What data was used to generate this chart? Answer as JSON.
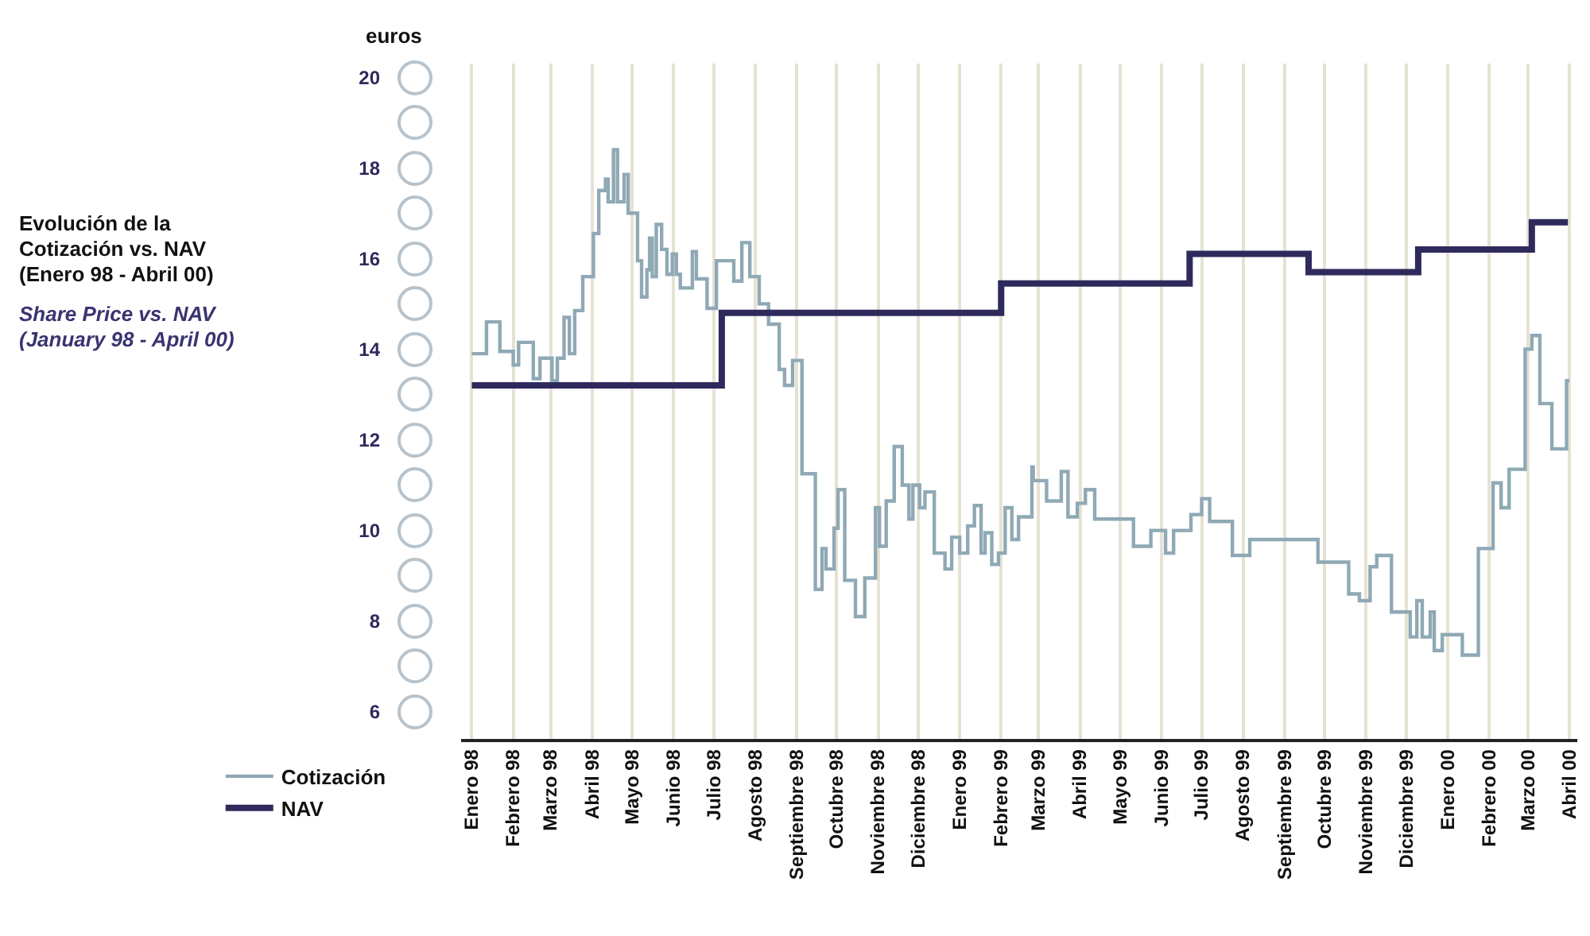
{
  "chart_data": {
    "type": "step",
    "title": "Evolución de la Cotización vs. NAV (Enero 98 - Abril 00)",
    "subtitle": "Share Price vs. NAV (January 98 - April 00)",
    "ylabel": "euros",
    "series": [
      {
        "name": "Cotización",
        "color": "#8fa9b5",
        "x": [
          "1998-01-01",
          "1998-01-12",
          "1998-01-22",
          "1998-02-01",
          "1998-02-05",
          "1998-02-16",
          "1998-02-21",
          "1998-03-02",
          "1998-03-06",
          "1998-03-11",
          "1998-03-15",
          "1998-03-19",
          "1998-03-25",
          "1998-04-02",
          "1998-04-06",
          "1998-04-11",
          "1998-04-13",
          "1998-04-17",
          "1998-04-20",
          "1998-04-25",
          "1998-04-28",
          "1998-05-05",
          "1998-05-08",
          "1998-05-12",
          "1998-05-14",
          "1998-05-16",
          "1998-05-19",
          "1998-05-23",
          "1998-05-27",
          "1998-05-31",
          "1998-06-03",
          "1998-06-06",
          "1998-06-15",
          "1998-06-18",
          "1998-06-26",
          "1998-07-03",
          "1998-07-16",
          "1998-07-22",
          "1998-07-28",
          "1998-08-04",
          "1998-08-11",
          "1998-08-19",
          "1998-08-23",
          "1998-08-29",
          "1998-09-05",
          "1998-09-15",
          "1998-09-20",
          "1998-09-23",
          "1998-09-29",
          "1998-10-02",
          "1998-10-07",
          "1998-10-15",
          "1998-10-22",
          "1998-10-30",
          "1998-11-02",
          "1998-11-07",
          "1998-11-13",
          "1998-11-19",
          "1998-11-24",
          "1998-11-27",
          "1998-12-02",
          "1998-12-06",
          "1998-12-13",
          "1998-12-21",
          "1998-12-26",
          "1999-01-01",
          "1999-01-07",
          "1999-01-12",
          "1999-01-17",
          "1999-01-20",
          "1999-01-25",
          "1999-01-30",
          "1999-02-04",
          "1999-02-09",
          "1999-02-14",
          "1999-02-24",
          "1999-02-25",
          "1999-03-07",
          "1999-03-18",
          "1999-03-23",
          "1999-03-30",
          "1999-04-05",
          "1999-04-12",
          "1999-05-11",
          "1999-05-24",
          "1999-06-04",
          "1999-06-10",
          "1999-06-23",
          "1999-07-01",
          "1999-07-07",
          "1999-07-24",
          "1999-08-06",
          "1999-09-26",
          "1999-10-19",
          "1999-10-27",
          "1999-11-04",
          "1999-11-09",
          "1999-11-20",
          "1999-12-04",
          "1999-12-09",
          "1999-12-13",
          "1999-12-19",
          "1999-12-22",
          "1999-12-28",
          "2000-01-12",
          "2000-01-24",
          "2000-02-04",
          "2000-02-10",
          "2000-02-16",
          "2000-02-28",
          "2000-03-04",
          "2000-03-10",
          "2000-03-19",
          "2000-03-30",
          "2000-04-01"
        ],
        "values": [
          13.9,
          14.6,
          13.95,
          13.65,
          14.15,
          13.35,
          13.8,
          13.3,
          13.8,
          14.7,
          13.9,
          14.85,
          15.6,
          16.55,
          17.5,
          17.75,
          17.25,
          18.4,
          17.25,
          17.85,
          17.0,
          15.95,
          15.15,
          15.75,
          16.45,
          15.6,
          16.75,
          16.2,
          15.65,
          16.1,
          15.65,
          15.35,
          16.15,
          15.55,
          14.9,
          15.95,
          15.5,
          16.35,
          15.6,
          15.0,
          14.55,
          13.55,
          13.2,
          13.75,
          11.25,
          8.7,
          9.6,
          9.15,
          10.05,
          10.9,
          8.9,
          8.1,
          8.95,
          10.5,
          9.65,
          10.65,
          11.85,
          11.0,
          10.25,
          11.0,
          10.5,
          10.85,
          9.5,
          9.15,
          9.85,
          9.5,
          10.1,
          10.55,
          9.5,
          9.95,
          9.25,
          9.5,
          10.5,
          9.8,
          10.3,
          11.4,
          11.1,
          10.65,
          11.3,
          10.3,
          10.6,
          10.9,
          10.25,
          9.65,
          10.0,
          9.5,
          10.0,
          10.35,
          10.7,
          10.2,
          9.45,
          9.8,
          9.3,
          8.6,
          8.45,
          9.2,
          9.45,
          8.2,
          7.65,
          8.45,
          7.65,
          8.2,
          7.35,
          7.7,
          7.25,
          9.6,
          11.05,
          10.5,
          11.35,
          14.0,
          14.3,
          12.8,
          11.8,
          13.3,
          13.3
        ]
      },
      {
        "name": "NAV",
        "color": "#2e2a5c",
        "x": [
          "1998-01-01",
          "1998-07-07",
          "1999-02-01",
          "1999-06-22",
          "1999-09-19",
          "1999-12-10",
          "2000-03-04",
          "2000-03-31"
        ],
        "values": [
          13.2,
          14.8,
          15.45,
          16.1,
          15.7,
          16.2,
          16.8,
          16.8
        ]
      }
    ],
    "xlim": [
      "1997-12-24",
      "2000-04-07"
    ],
    "xticks": [
      {
        "value": "1998-01-01",
        "label": "Enero 98"
      },
      {
        "value": "1998-02-01",
        "label": "Febrero 98"
      },
      {
        "value": "1998-03-01",
        "label": "Marzo 98"
      },
      {
        "value": "1998-04-01",
        "label": "Abril 98"
      },
      {
        "value": "1998-05-01",
        "label": "Mayo 98"
      },
      {
        "value": "1998-06-01",
        "label": "Junio 98"
      },
      {
        "value": "1998-07-01",
        "label": "Julio 98"
      },
      {
        "value": "1998-08-01",
        "label": "Agosto 98"
      },
      {
        "value": "1998-09-01",
        "label": "Septiembre 98"
      },
      {
        "value": "1998-10-01",
        "label": "Octubre 98"
      },
      {
        "value": "1998-11-01",
        "label": "Noviembre 98"
      },
      {
        "value": "1998-12-01",
        "label": "Diciembre 98"
      },
      {
        "value": "1999-01-01",
        "label": "Enero 99"
      },
      {
        "value": "1999-02-01",
        "label": "Febrero 99"
      },
      {
        "value": "1999-03-01",
        "label": "Marzo 99"
      },
      {
        "value": "1999-04-01",
        "label": "Abril 99"
      },
      {
        "value": "1999-05-01",
        "label": "Mayo 99"
      },
      {
        "value": "1999-06-01",
        "label": "Junio 99"
      },
      {
        "value": "1999-07-01",
        "label": "Julio 99"
      },
      {
        "value": "1999-08-01",
        "label": "Agosto 99"
      },
      {
        "value": "1999-09-01",
        "label": "Septiembre 99"
      },
      {
        "value": "1999-10-01",
        "label": "Octubre 99"
      },
      {
        "value": "1999-11-01",
        "label": "Noviembre 99"
      },
      {
        "value": "1999-12-01",
        "label": "Diciembre 99"
      },
      {
        "value": "2000-01-01",
        "label": "Enero 00"
      },
      {
        "value": "2000-02-01",
        "label": "Febrero 00"
      },
      {
        "value": "2000-03-01",
        "label": "Marzo 00"
      },
      {
        "value": "2000-04-01",
        "label": "Abril 00"
      }
    ],
    "ylim": [
      5.4,
      20.3
    ],
    "yticks": [
      6,
      8,
      10,
      12,
      14,
      16,
      18,
      20
    ],
    "grid": "x",
    "legend": "bottom left",
    "line_style": "solid",
    "marker": "none"
  }
}
